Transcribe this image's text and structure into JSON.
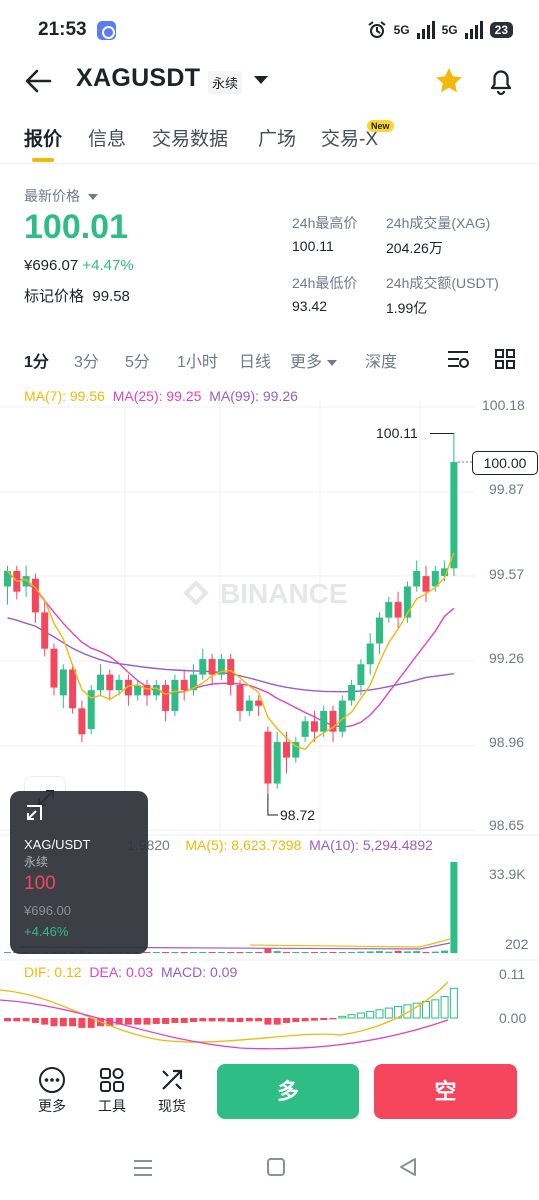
{
  "status_bar": {
    "time": "21:53",
    "net1": "5G",
    "net2": "5G",
    "battery": "23"
  },
  "header": {
    "pair": "XAGUSDT",
    "contract_type": "永续",
    "icons": [
      "back-arrow-icon",
      "dropdown-caret-icon",
      "star-icon",
      "bell-icon"
    ],
    "star_color": "#f0b90b"
  },
  "tabs": [
    {
      "label": "报价",
      "active": true
    },
    {
      "label": "信息",
      "active": false
    },
    {
      "label": "交易数据",
      "active": false
    },
    {
      "label": "广场",
      "active": false
    },
    {
      "label": "交易-X",
      "active": false
    }
  ],
  "new_badge": "New",
  "ticker": {
    "last_price_label": "最新价格",
    "last_price": "100.01",
    "fiat_price": "¥696.07",
    "change_pct": "+4.47%",
    "mark_price_label": "标记价格",
    "mark_price": "99.58",
    "high_label": "24h最高价",
    "high": "100.11",
    "low_label": "24h最低价",
    "low": "93.42",
    "vol_label": "24h成交量(XAG)",
    "vol": "204.26万",
    "turnover_label": "24h成交额(USDT)",
    "turnover": "1.99亿"
  },
  "intervals": [
    {
      "label": "1分",
      "active": true
    },
    {
      "label": "3分",
      "active": false
    },
    {
      "label": "5分",
      "active": false
    },
    {
      "label": "1小时",
      "active": false
    },
    {
      "label": "日线",
      "active": false
    },
    {
      "label": "更多",
      "active": false
    },
    {
      "label": "深度",
      "active": false
    }
  ],
  "ma_legend": {
    "ma7": "MA(7): 99.56",
    "ma25": "MA(25): 99.25",
    "ma99": "MA(99): 99.26"
  },
  "price_axis": [
    "100.18",
    "99.87",
    "99.57",
    "99.26",
    "98.96",
    "98.65"
  ],
  "current_price_tag": "100.00",
  "high_marker": "100.11",
  "low_marker": "98.72",
  "watermark": "BINANCE",
  "volume": {
    "vol_partial": "1.9820",
    "ma5": "MA(5): 8,623.7398",
    "ma10": "MA(10): 5,294.4892",
    "axis_top": "33.9K",
    "axis_bottom": "202"
  },
  "macd": {
    "dif": "DIF: 0.12",
    "dea": "DEA: 0.03",
    "macd": "MACD: 0.09",
    "axis_top": "0.11",
    "axis_mid": "0.00"
  },
  "overlay": {
    "pair": "XAG/USDT",
    "type": "永续",
    "price": "100",
    "fiat": "¥696.00",
    "change": "+4.46%"
  },
  "bottom": {
    "more": "更多",
    "tools": "工具",
    "spot": "现货",
    "long": "多",
    "short": "空"
  },
  "colors": {
    "up": "#2ebd85",
    "down": "#f6465d",
    "ma7": "#f0b90b",
    "ma25": "#d946c0",
    "ma99": "#9a5cc6"
  },
  "chart_data": {
    "type": "candlestick",
    "interval": "1分",
    "ylim": [
      98.6,
      100.22
    ],
    "y_ticks": [
      100.18,
      99.87,
      99.57,
      99.26,
      98.96,
      98.65
    ],
    "candles": [
      [
        99.52,
        99.58,
        99.45,
        99.6
      ],
      [
        99.58,
        99.5,
        99.47,
        99.6
      ],
      [
        99.52,
        99.56,
        99.48,
        99.6
      ],
      [
        99.55,
        99.42,
        99.38,
        99.57
      ],
      [
        99.42,
        99.28,
        99.25,
        99.46
      ],
      [
        99.28,
        99.13,
        99.1,
        99.3
      ],
      [
        99.1,
        99.2,
        99.05,
        99.22
      ],
      [
        99.2,
        99.05,
        99.03,
        99.22
      ],
      [
        99.05,
        98.95,
        98.92,
        99.08
      ],
      [
        98.97,
        99.12,
        98.95,
        99.14
      ],
      [
        99.12,
        99.18,
        99.1,
        99.22
      ],
      [
        99.18,
        99.12,
        99.08,
        99.2
      ],
      [
        99.12,
        99.16,
        99.1,
        99.18
      ],
      [
        99.16,
        99.1,
        99.06,
        99.18
      ],
      [
        99.1,
        99.14,
        99.08,
        99.16
      ],
      [
        99.14,
        99.1,
        99.06,
        99.16
      ],
      [
        99.1,
        99.14,
        99.08,
        99.16
      ],
      [
        99.14,
        99.04,
        99.0,
        99.16
      ],
      [
        99.04,
        99.16,
        99.02,
        99.18
      ],
      [
        99.16,
        99.12,
        99.08,
        99.2
      ],
      [
        99.12,
        99.18,
        99.1,
        99.22
      ],
      [
        99.18,
        99.24,
        99.16,
        99.28
      ],
      [
        99.24,
        99.18,
        99.14,
        99.26
      ],
      [
        99.18,
        99.24,
        99.16,
        99.26
      ],
      [
        99.24,
        99.14,
        99.1,
        99.26
      ],
      [
        99.14,
        99.04,
        99.0,
        99.16
      ],
      [
        99.04,
        99.08,
        99.02,
        99.1
      ],
      [
        99.08,
        99.06,
        99.02,
        99.1
      ],
      [
        98.96,
        98.76,
        98.72,
        98.98
      ],
      [
        98.76,
        98.92,
        98.74,
        98.96
      ],
      [
        98.92,
        98.86,
        98.8,
        98.96
      ],
      [
        98.86,
        98.92,
        98.84,
        98.94
      ],
      [
        98.94,
        99.0,
        98.92,
        99.02
      ],
      [
        99.0,
        98.96,
        98.92,
        99.04
      ],
      [
        98.96,
        99.04,
        98.94,
        99.06
      ],
      [
        99.04,
        98.96,
        98.92,
        99.06
      ],
      [
        98.96,
        99.08,
        98.94,
        99.1
      ],
      [
        99.08,
        99.14,
        99.06,
        99.16
      ],
      [
        99.14,
        99.22,
        99.1,
        99.24
      ],
      [
        99.22,
        99.3,
        99.18,
        99.34
      ],
      [
        99.3,
        99.4,
        99.26,
        99.42
      ],
      [
        99.4,
        99.46,
        99.38,
        99.48
      ],
      [
        99.46,
        99.4,
        99.36,
        99.5
      ],
      [
        99.4,
        99.52,
        99.38,
        99.54
      ],
      [
        99.52,
        99.58,
        99.5,
        99.62
      ],
      [
        99.56,
        99.5,
        99.46,
        99.6
      ],
      [
        99.52,
        99.58,
        99.5,
        99.6
      ],
      [
        99.56,
        99.59,
        99.54,
        99.62
      ],
      [
        99.59,
        100.0,
        99.56,
        100.11
      ]
    ],
    "high_marker": 100.11,
    "low_marker": 98.72,
    "current_price": 100.0,
    "volume": {
      "ylim": [
        0,
        33900
      ],
      "values": [
        300,
        200,
        250,
        400,
        350,
        500,
        300,
        400,
        600,
        300,
        250,
        300,
        200,
        300,
        250,
        200,
        350,
        300,
        200,
        250,
        300,
        200,
        300,
        250,
        350,
        300,
        200,
        300,
        1800,
        700,
        400,
        300,
        250,
        300,
        350,
        250,
        300,
        400,
        500,
        600,
        700,
        500,
        800,
        600,
        700,
        400,
        500,
        900,
        33900
      ]
    },
    "macd": {
      "ylim": [
        -0.06,
        0.13
      ],
      "hist": [
        -0.01,
        -0.01,
        -0.01,
        -0.015,
        -0.02,
        -0.025,
        -0.025,
        -0.025,
        -0.03,
        -0.03,
        -0.025,
        -0.025,
        -0.02,
        -0.02,
        -0.02,
        -0.02,
        -0.018,
        -0.018,
        -0.015,
        -0.015,
        -0.012,
        -0.01,
        -0.01,
        -0.01,
        -0.012,
        -0.012,
        -0.01,
        -0.01,
        -0.02,
        -0.02,
        -0.015,
        -0.012,
        -0.01,
        -0.008,
        -0.006,
        -0.004,
        0.005,
        0.01,
        0.015,
        0.02,
        0.025,
        0.03,
        0.035,
        0.04,
        0.045,
        0.05,
        0.055,
        0.065,
        0.09
      ]
    }
  }
}
